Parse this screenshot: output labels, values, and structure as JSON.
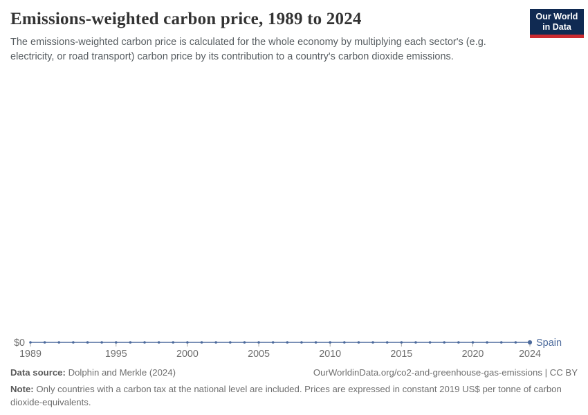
{
  "header": {
    "title": "Emissions-weighted carbon price, 1989 to 2024",
    "subtitle": "The emissions-weighted carbon price is calculated for the whole economy by multiplying each sector's (e.g. electricity, or road transport) carbon price by its contribution to a country's carbon dioxide emissions.",
    "logo": {
      "line1": "Our World",
      "line2": "in Data",
      "bg_color": "#102a52",
      "accent_color": "#cb2a30"
    }
  },
  "chart_data": {
    "type": "line",
    "title": "Emissions-weighted carbon price, 1989 to 2024",
    "x_range": [
      1989,
      2024
    ],
    "x_ticks": [
      1989,
      1995,
      2000,
      2005,
      2010,
      2015,
      2020,
      2024
    ],
    "y_axis": {
      "zero_label": "$0",
      "ylim": [
        0,
        0
      ]
    },
    "grid": false,
    "legend": "end-of-line entity label",
    "colors": {
      "axis_tick": "#a8a8a8",
      "axis_text": "#6e6e6e"
    },
    "series": [
      {
        "name": "Spain",
        "color": "#4c6a9c",
        "x": [
          1989,
          1990,
          1991,
          1992,
          1993,
          1994,
          1995,
          1996,
          1997,
          1998,
          1999,
          2000,
          2001,
          2002,
          2003,
          2004,
          2005,
          2006,
          2007,
          2008,
          2009,
          2010,
          2011,
          2012,
          2013,
          2014,
          2015,
          2016,
          2017,
          2018,
          2019,
          2020,
          2021,
          2022,
          2023,
          2024
        ],
        "values": [
          0,
          0,
          0,
          0,
          0,
          0,
          0,
          0,
          0,
          0,
          0,
          0,
          0,
          0,
          0,
          0,
          0,
          0,
          0,
          0,
          0,
          0,
          0,
          0,
          0,
          0,
          0,
          0,
          0,
          0,
          0,
          0,
          0,
          0,
          0,
          0
        ]
      }
    ]
  },
  "footer": {
    "data_source_label": "Data source:",
    "data_source_value": "Dolphin and Merkle (2024)",
    "attribution": "OurWorldinData.org/co2-and-greenhouse-gas-emissions | CC BY",
    "note_label": "Note:",
    "note_text": "Only countries with a carbon tax at the national level are included. Prices are expressed in constant 2019 US$ per tonne of carbon dioxide-equivalents."
  }
}
